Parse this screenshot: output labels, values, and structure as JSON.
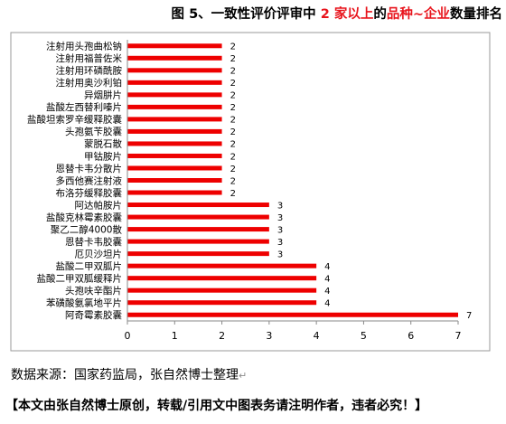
{
  "header": {
    "title_parts": [
      {
        "text": "图 5、一致性评价评审中 ",
        "color": "#000000"
      },
      {
        "text": "2 家以上",
        "color": "#e8141c"
      },
      {
        "text": "的",
        "color": "#000000"
      },
      {
        "text": "品种~企业",
        "color": "#e8141c"
      },
      {
        "text": "数量排名",
        "color": "#000000"
      }
    ]
  },
  "footer": {
    "source": "数据来源：国家药监局，张自然博士整理",
    "note": "【本文由张自然博士原创，转载/引用文中图表务请注明作者，违者必究！】",
    "para_mark": "↵"
  },
  "chart_data": {
    "type": "bar",
    "orientation": "horizontal",
    "categories": [
      "注射用头孢曲松钠",
      "注射用福普佐米",
      "注射用环磷酰胺",
      "注射用奥沙利铂",
      "异烟肼片",
      "盐酸左西替利嗪片",
      "盐酸坦索罗辛缓释胶囊",
      "头孢氨苄胶囊",
      "蒙脱石散",
      "甲钴胺片",
      "恩替卡韦分散片",
      "多西他赛注射液",
      "布洛芬缓释胶囊",
      "阿达帕胺片",
      "盐酸克林霉素胶囊",
      "聚乙二醇4000散",
      "恩替卡韦胶囊",
      "厄贝沙坦片",
      "盐酸二甲双胍片",
      "盐酸二甲双胍缓释片",
      "头孢呋辛酯片",
      "苯磺酸氨氯地平片",
      "阿奇霉素胶囊"
    ],
    "values": [
      2,
      2,
      2,
      2,
      2,
      2,
      2,
      2,
      2,
      2,
      2,
      2,
      2,
      3,
      3,
      3,
      3,
      3,
      4,
      4,
      4,
      4,
      7
    ],
    "xlim": [
      0,
      7
    ],
    "xticks": [
      0,
      1,
      2,
      3,
      4,
      5,
      6,
      7
    ],
    "bar_color": "#ee0000",
    "grid": false,
    "legend": "none"
  }
}
